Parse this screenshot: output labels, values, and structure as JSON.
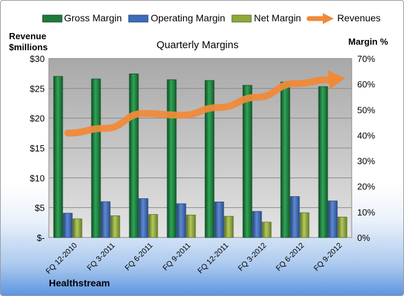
{
  "chart_data": {
    "type": "bar",
    "title": "Quarterly Margins",
    "left_axis_label_line1": "Revenue",
    "left_axis_label_line2": "$millions",
    "right_axis_label": "Margin %",
    "company": "Healthstream",
    "categories": [
      "FQ 12-2010",
      "FQ 3-2011",
      "FQ 6-2011",
      "FQ 9-2011",
      "FQ 12-2011",
      "FQ 3-2012",
      "FQ 6-2012",
      "FQ 9-2012"
    ],
    "left_axis": {
      "min": 0,
      "max": 30,
      "ticks": [
        "$-",
        "$5",
        "$10",
        "$15",
        "$20",
        "$25",
        "$30"
      ]
    },
    "right_axis": {
      "min": 0,
      "max": 70,
      "ticks": [
        "0%",
        "10%",
        "20%",
        "30%",
        "40%",
        "50%",
        "60%",
        "70%"
      ]
    },
    "series": [
      {
        "name": "Gross Margin",
        "axis": "right",
        "kind": "bar",
        "color": "#1f7a3c",
        "values": [
          63.0,
          62.0,
          64.0,
          61.7,
          61.4,
          59.5,
          60.8,
          59.0
        ]
      },
      {
        "name": "Operating Margin",
        "axis": "right",
        "kind": "bar",
        "color": "#3d6cb8",
        "values": [
          9.5,
          14.0,
          15.2,
          13.2,
          13.9,
          10.2,
          16.0,
          14.3
        ]
      },
      {
        "name": "Net Margin",
        "axis": "right",
        "kind": "bar",
        "color": "#8ea83c",
        "values": [
          7.3,
          8.5,
          9.0,
          8.8,
          8.3,
          6.0,
          9.7,
          8.0
        ]
      },
      {
        "name": "Revenues",
        "axis": "left",
        "kind": "line",
        "color": "#ef8a3a",
        "values": [
          17.5,
          18.3,
          20.8,
          20.5,
          21.8,
          23.5,
          25.8,
          26.5
        ]
      }
    ],
    "plot_background": "#c9c9c9",
    "grid": true,
    "legend": "top"
  }
}
